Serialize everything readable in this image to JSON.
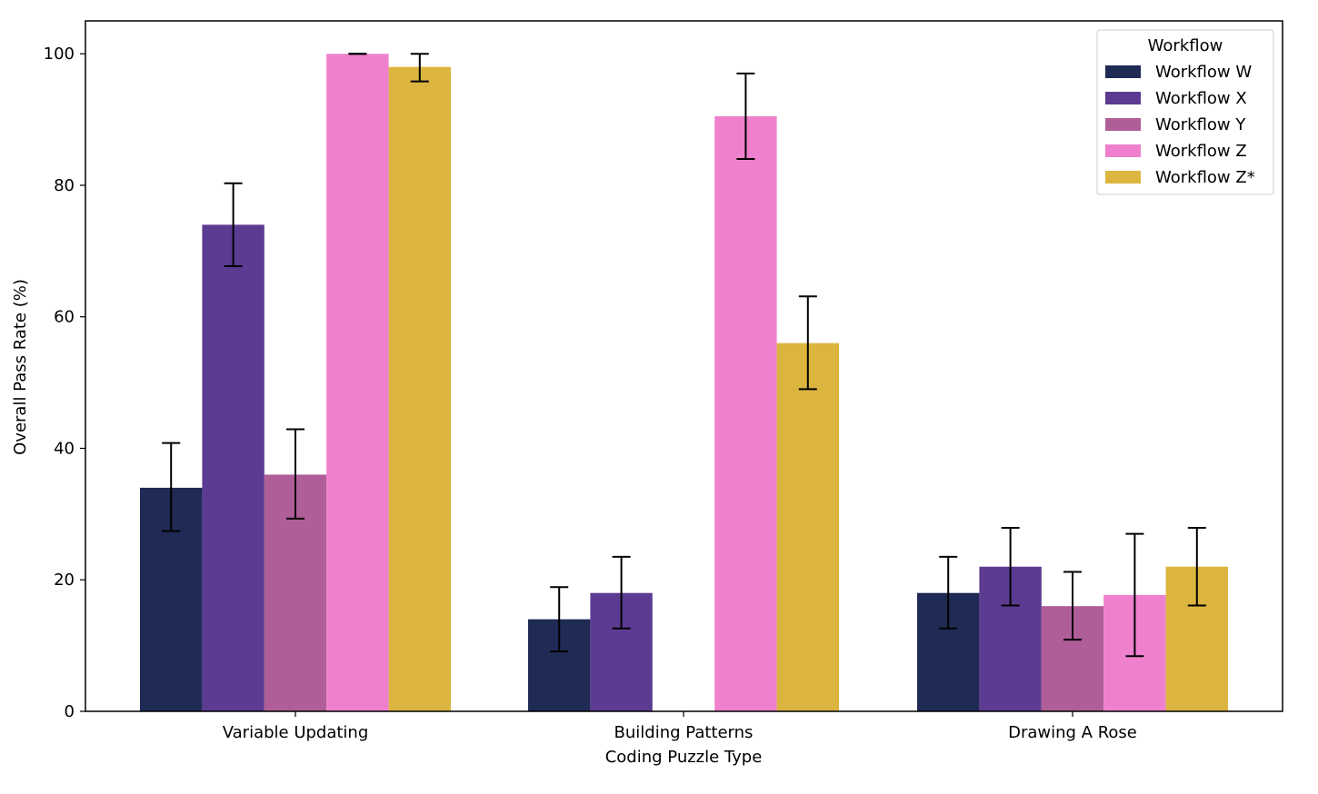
{
  "chart_data": {
    "type": "bar",
    "title": "",
    "xlabel": "Coding Puzzle Type",
    "ylabel": "Overall Pass Rate (%)",
    "categories": [
      "Variable Updating",
      "Building Patterns",
      "Drawing A Rose"
    ],
    "ylim": [
      0,
      105
    ],
    "yticks": [
      0,
      20,
      40,
      60,
      80,
      100
    ],
    "grid": false,
    "legend": {
      "title": "Workflow",
      "position": "top-right"
    },
    "series": [
      {
        "name": "Workflow W",
        "color": "#1f2a55",
        "values": [
          34,
          14,
          18
        ],
        "error_low": [
          27.4,
          9.1,
          12.6
        ],
        "error_high": [
          40.8,
          18.9,
          23.5
        ]
      },
      {
        "name": "Workflow X",
        "color": "#5c3b92",
        "values": [
          74,
          18,
          22
        ],
        "error_low": [
          67.7,
          12.6,
          16.1
        ],
        "error_high": [
          80.3,
          23.5,
          27.9
        ]
      },
      {
        "name": "Workflow Y",
        "color": "#af5e97",
        "values": [
          36,
          0,
          16
        ],
        "error_low": [
          29.3,
          null,
          10.9
        ],
        "error_high": [
          42.9,
          null,
          21.2
        ]
      },
      {
        "name": "Workflow Z",
        "color": "#ee80cd",
        "values": [
          100,
          90.5,
          17.7
        ],
        "error_low": [
          100,
          84.0,
          8.4
        ],
        "error_high": [
          100,
          97.0,
          27.0
        ]
      },
      {
        "name": "Workflow Z*",
        "color": "#dbb53f",
        "values": [
          98,
          56,
          22
        ],
        "error_low": [
          95.8,
          49.0,
          16.1
        ],
        "error_high": [
          100,
          63.1,
          27.9
        ]
      }
    ]
  }
}
